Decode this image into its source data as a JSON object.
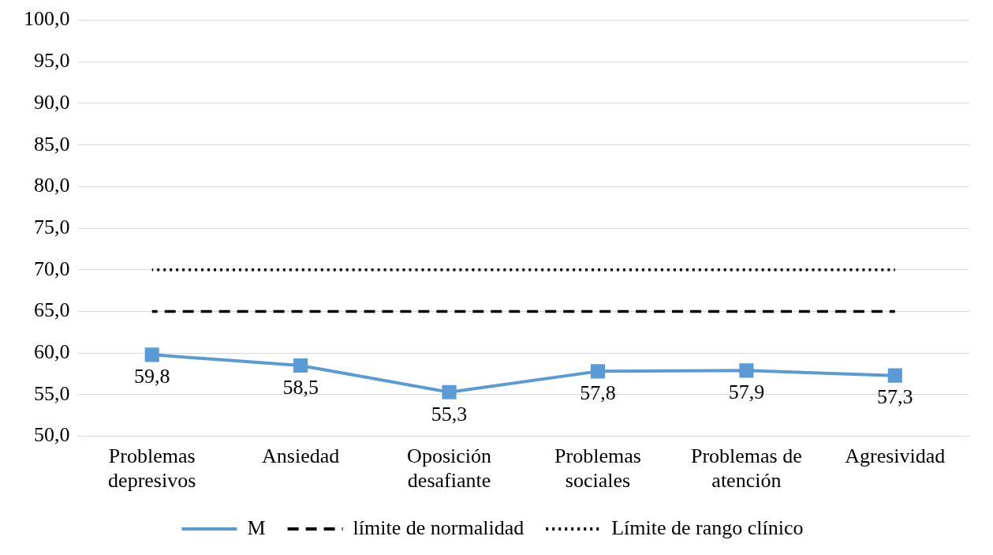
{
  "chart_data": {
    "type": "line",
    "categories": [
      "Problemas\ndepresivos",
      "Ansiedad",
      "Oposición\ndesafiante",
      "Problemas\nsociales",
      "Problemas de\natención",
      "Agresividad"
    ],
    "series": [
      {
        "name": "M",
        "color": "#5b9bd5",
        "values": [
          59.8,
          58.5,
          55.3,
          57.8,
          57.9,
          57.3
        ],
        "marker": "square",
        "line_style": "solid",
        "value_labels": [
          "59,8",
          "58,5",
          "55,3",
          "57,8",
          "57,9",
          "57,3"
        ]
      },
      {
        "name": "límite de normalidad",
        "color": "#000000",
        "values": [
          65,
          65,
          65,
          65,
          65,
          65
        ],
        "marker": "none",
        "line_style": "dashed"
      },
      {
        "name": "Límite de rango clínico",
        "color": "#000000",
        "values": [
          70,
          70,
          70,
          70,
          70,
          70
        ],
        "marker": "none",
        "line_style": "dotted"
      }
    ],
    "ylim": [
      50,
      100
    ],
    "yticks": [
      {
        "value": 50,
        "label": "50,0"
      },
      {
        "value": 55,
        "label": "55,0"
      },
      {
        "value": 60,
        "label": "60,0"
      },
      {
        "value": 65,
        "label": "65,0"
      },
      {
        "value": 70,
        "label": "70,0"
      },
      {
        "value": 75,
        "label": "75,0"
      },
      {
        "value": 80,
        "label": "80,0"
      },
      {
        "value": 85,
        "label": "85,0"
      },
      {
        "value": 90,
        "label": "90,0"
      },
      {
        "value": 95,
        "label": "95,0"
      },
      {
        "value": 100,
        "label": "100,0"
      }
    ],
    "grid": "y",
    "legend": "bottom"
  }
}
